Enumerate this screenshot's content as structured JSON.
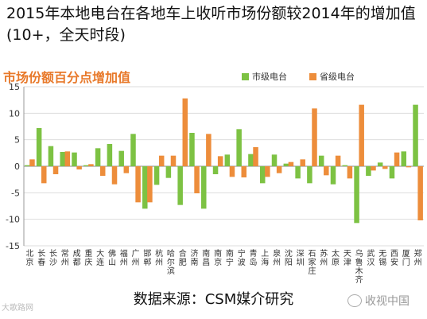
{
  "header": {
    "title": "2015年本地电台在各地车上收听市场份额较2014年的增加值(10+，全天时段)"
  },
  "chart_data": {
    "type": "bar",
    "title": "市场份额百分点增加值",
    "categories": [
      "北京",
      "长春",
      "长沙",
      "常州",
      "成都",
      "重庆",
      "大连",
      "佛山",
      "福州",
      "广州",
      "邯郸",
      "杭州",
      "哈尔滨",
      "合肥",
      "济南",
      "南昌",
      "南京",
      "南宁",
      "宁波",
      "青岛",
      "上海",
      "泉州",
      "沈阳",
      "深圳",
      "石家庄",
      "苏州",
      "太原",
      "天津",
      "乌鲁木齐",
      "武汉",
      "无锡",
      "西安",
      "厦门",
      "郑州"
    ],
    "series": [
      {
        "name": "市级电台",
        "color": "#7dc243",
        "values": [
          0.2,
          7.2,
          3.8,
          2.7,
          2.6,
          0.2,
          3.4,
          4.2,
          2.9,
          6.1,
          -8.0,
          -3.5,
          -2.2,
          -7.3,
          6.3,
          -8.0,
          -1.5,
          2.2,
          7.0,
          2.3,
          -3.2,
          2.2,
          0.5,
          -2.3,
          -3.2,
          2.0,
          -3.4,
          0.2,
          -10.7,
          -1.8,
          0.7,
          -2.3,
          2.8,
          11.6
        ]
      },
      {
        "name": "省级电台",
        "color": "#ed8d3b",
        "values": [
          1.3,
          -3.2,
          -1.5,
          2.8,
          -0.6,
          0.4,
          -1.8,
          -3.4,
          -1.3,
          -6.8,
          -6.8,
          2.0,
          2.0,
          12.8,
          -5.1,
          6.1,
          1.9,
          -2.0,
          -2.1,
          3.6,
          -2.0,
          -1.3,
          0.8,
          1.3,
          10.9,
          -1.7,
          2.0,
          -2.3,
          11.6,
          -0.8,
          -0.5,
          2.6,
          -0.2,
          -10.2
        ]
      }
    ],
    "xlabel": "",
    "ylabel": "",
    "ylim": [
      -15,
      15
    ],
    "yticks": [
      -15,
      -10,
      -5,
      0,
      5,
      10,
      15
    ],
    "grid": true,
    "legend": "top-right"
  },
  "footer": {
    "source": "数据来源：CSM媒介研究"
  },
  "watermarks": {
    "left": "大歌路网",
    "right": "收视中国"
  }
}
